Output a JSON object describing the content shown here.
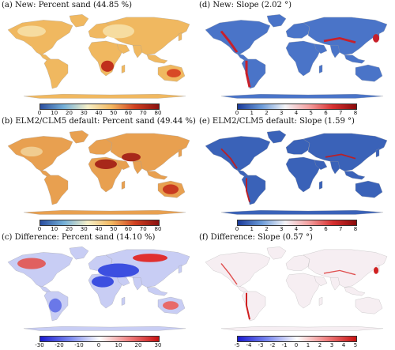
{
  "panels": [
    {
      "title": "(a) New: Percent sand (44.85 %)",
      "variable": "sand",
      "colormap": "sequential-yellow-red",
      "ticks": [
        "0",
        "10",
        "20",
        "30",
        "40",
        "50",
        "60",
        "70",
        "80"
      ]
    },
    {
      "title": "(d) New: Slope (2.02 °)",
      "variable": "slope",
      "colormap": "blue-white-red",
      "ticks": [
        "0",
        "1",
        "2",
        "3",
        "4",
        "5",
        "6",
        "7",
        "8"
      ]
    },
    {
      "title": "(b) ELM2/CLM5 default: Percent sand (49.44 %)",
      "variable": "sand",
      "colormap": "sequential-yellow-red",
      "ticks": [
        "0",
        "10",
        "20",
        "30",
        "40",
        "50",
        "60",
        "70",
        "80"
      ]
    },
    {
      "title": "(e) ELM2/CLM5 default: Slope (1.59 °)",
      "variable": "slope",
      "colormap": "blue-white-red",
      "ticks": [
        "0",
        "1",
        "2",
        "3",
        "4",
        "5",
        "6",
        "7",
        "8"
      ]
    },
    {
      "title": "(c) Difference: Percent sand (14.10 %)",
      "variable": "sand-difference",
      "colormap": "diverging-blue-red",
      "ticks": [
        "-30",
        "-20",
        "-10",
        "0",
        "10",
        "20",
        "30"
      ]
    },
    {
      "title": "(f) Difference: Slope  (0.57 °)",
      "variable": "slope-difference",
      "colormap": "diverging-blue-red",
      "ticks": [
        "-5",
        "-4",
        "-3",
        "-2",
        "-1",
        "0",
        "1",
        "2",
        "3",
        "4",
        "5"
      ]
    }
  ],
  "colors": {
    "sand_land": "#f0b860",
    "sand_hot": "#c0301c",
    "slope_land": "#4a74c8",
    "slope_hot": "#c8202a",
    "diff_land": "#f6f0f2",
    "diff_blue": "#3c4fe0",
    "diff_red": "#e03030"
  }
}
